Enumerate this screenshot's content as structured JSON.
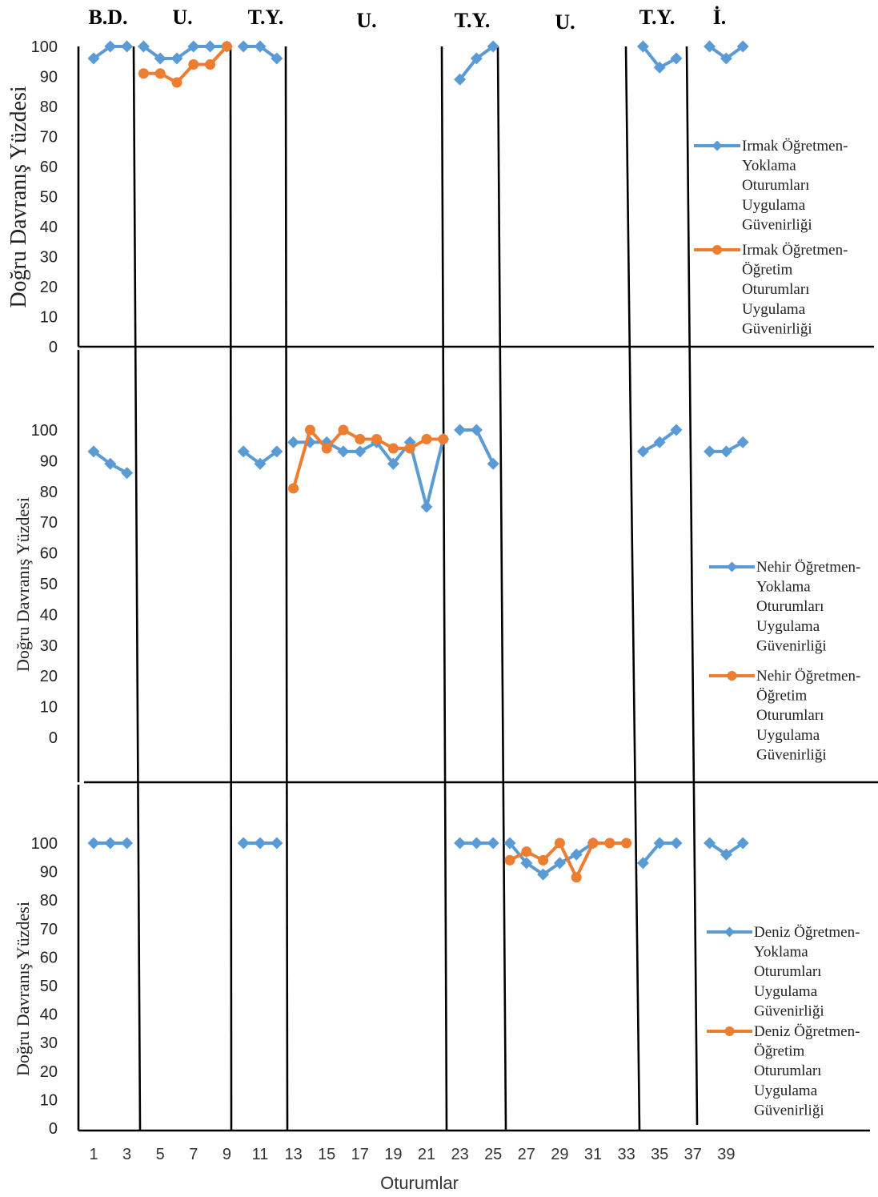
{
  "phase_labels": [
    "B.D.",
    "U.",
    "T.Y.",
    "U.",
    "T.Y.",
    "U.",
    "T.Y.",
    "İ."
  ],
  "x_axis_label": "Oturumlar",
  "x_tick_labels": [
    "1",
    "3",
    "5",
    "7",
    "9",
    "11",
    "13",
    "15",
    "17",
    "19",
    "21",
    "23",
    "25",
    "27",
    "29",
    "31",
    "33",
    "35",
    "37",
    "39"
  ],
  "y_axis_label": "Doğru Davranış Yüzdesi",
  "colors": {
    "probe": "#5b9bd5",
    "teaching": "#ed7d31"
  },
  "chart_data": [
    {
      "type": "line",
      "ylabel": "Doğru Davranış Yüzdesi",
      "xlabel": "",
      "yticks": [
        "0",
        "10",
        "20",
        "30",
        "40",
        "50",
        "60",
        "70",
        "80",
        "90",
        "100"
      ],
      "ylim": [
        0,
        100
      ],
      "xlim": [
        0,
        40
      ],
      "series": [
        {
          "name": "Irmak Öğretmen-Yoklama Oturumları Uygulama Güvenirliği",
          "legend_lines": [
            "Irmak Öğretmen-",
            "Yoklama",
            "Oturumları",
            "Uygulama",
            "Güvenirliği"
          ],
          "marker": "diamond",
          "segments": [
            [
              [
                1,
                96
              ],
              [
                2,
                100
              ],
              [
                3,
                100
              ]
            ],
            [
              [
                4,
                100
              ],
              [
                5,
                96
              ],
              [
                6,
                96
              ],
              [
                7,
                100
              ],
              [
                8,
                100
              ],
              [
                9,
                100
              ]
            ],
            [
              [
                10,
                100
              ],
              [
                11,
                100
              ],
              [
                12,
                96
              ]
            ],
            [
              [
                23,
                89
              ],
              [
                24,
                96
              ],
              [
                25,
                100
              ]
            ],
            [
              [
                34,
                100
              ],
              [
                35,
                93
              ],
              [
                36,
                96
              ]
            ],
            [
              [
                38,
                100
              ],
              [
                39,
                96
              ],
              [
                40,
                100
              ]
            ]
          ]
        },
        {
          "name": "Irmak Öğretmen-Öğretim Oturumları Uygulama Güvenirliği",
          "legend_lines": [
            "Irmak Öğretmen-",
            "Öğretim",
            "Oturumları",
            "Uygulama",
            "Güvenirliği"
          ],
          "marker": "circle",
          "segments": [
            [
              [
                4,
                91
              ],
              [
                5,
                91
              ],
              [
                6,
                88
              ],
              [
                7,
                94
              ],
              [
                8,
                94
              ],
              [
                9,
                100
              ]
            ]
          ]
        }
      ]
    },
    {
      "type": "line",
      "ylabel": "Doğru Davranış Yüzdesi",
      "xlabel": "",
      "yticks": [
        "0",
        "10",
        "20",
        "30",
        "40",
        "50",
        "60",
        "70",
        "80",
        "90",
        "100"
      ],
      "ylim": [
        0,
        100
      ],
      "xlim": [
        0,
        40
      ],
      "series": [
        {
          "name": "Nehir Öğretmen-Yoklama Oturumları Uygulama Güvenirliği",
          "legend_lines": [
            "Nehir Öğretmen-",
            "Yoklama",
            "Oturumları",
            "Uygulama",
            "Güvenirliği"
          ],
          "marker": "diamond",
          "segments": [
            [
              [
                1,
                93
              ],
              [
                2,
                89
              ],
              [
                3,
                86
              ]
            ],
            [
              [
                10,
                93
              ],
              [
                11,
                89
              ],
              [
                12,
                93
              ]
            ],
            [
              [
                13,
                96
              ],
              [
                14,
                96
              ],
              [
                15,
                96
              ],
              [
                16,
                93
              ],
              [
                17,
                93
              ],
              [
                18,
                96
              ],
              [
                19,
                89
              ],
              [
                20,
                96
              ],
              [
                21,
                75
              ],
              [
                22,
                97
              ]
            ],
            [
              [
                23,
                100
              ],
              [
                24,
                100
              ],
              [
                25,
                89
              ]
            ],
            [
              [
                34,
                93
              ],
              [
                35,
                96
              ],
              [
                36,
                100
              ]
            ],
            [
              [
                38,
                93
              ],
              [
                39,
                93
              ],
              [
                40,
                96
              ]
            ]
          ]
        },
        {
          "name": "Nehir Öğretmen-Öğretim Oturumları Uygulama Güvenirliği",
          "legend_lines": [
            "Nehir Öğretmen-",
            "Öğretim",
            "Oturumları",
            "Uygulama",
            "Güvenirliği"
          ],
          "marker": "circle",
          "segments": [
            [
              [
                13,
                81
              ],
              [
                14,
                100
              ],
              [
                15,
                94
              ],
              [
                16,
                100
              ],
              [
                17,
                97
              ],
              [
                18,
                97
              ],
              [
                19,
                94
              ],
              [
                20,
                94
              ],
              [
                21,
                97
              ],
              [
                22,
                97
              ]
            ]
          ]
        }
      ]
    },
    {
      "type": "line",
      "ylabel": "Doğru Davranış Yüzdesi",
      "xlabel": "Oturumlar",
      "yticks": [
        "0",
        "10",
        "20",
        "30",
        "40",
        "50",
        "60",
        "70",
        "80",
        "90",
        "100"
      ],
      "ylim": [
        0,
        100
      ],
      "xlim": [
        0,
        40
      ],
      "series": [
        {
          "name": "Deniz Öğretmen-Yoklama Oturumları Uygulama Güvenirliği",
          "legend_lines": [
            "Deniz Öğretmen-",
            "Yoklama",
            "Oturumları",
            "Uygulama",
            "Güvenirliği"
          ],
          "marker": "diamond",
          "segments": [
            [
              [
                1,
                100
              ],
              [
                2,
                100
              ],
              [
                3,
                100
              ]
            ],
            [
              [
                10,
                100
              ],
              [
                11,
                100
              ],
              [
                12,
                100
              ]
            ],
            [
              [
                23,
                100
              ],
              [
                24,
                100
              ],
              [
                25,
                100
              ]
            ],
            [
              [
                26,
                100
              ],
              [
                27,
                93
              ],
              [
                28,
                89
              ],
              [
                29,
                93
              ],
              [
                30,
                96
              ],
              [
                31,
                100
              ]
            ],
            [
              [
                34,
                93
              ],
              [
                35,
                100
              ],
              [
                36,
                100
              ]
            ],
            [
              [
                38,
                100
              ],
              [
                39,
                96
              ],
              [
                40,
                100
              ]
            ]
          ]
        },
        {
          "name": "Deniz Öğretmen-Öğretim Oturumları Uygulama Güvenirliği",
          "legend_lines": [
            "Deniz Öğretmen-",
            "Öğretim",
            "Oturumları",
            "Uygulama",
            "Güvenirliği"
          ],
          "marker": "circle",
          "segments": [
            [
              [
                26,
                94
              ],
              [
                27,
                97
              ],
              [
                28,
                94
              ],
              [
                29,
                100
              ],
              [
                30,
                88
              ],
              [
                31,
                100
              ],
              [
                32,
                100
              ],
              [
                33,
                100
              ]
            ]
          ]
        }
      ]
    }
  ]
}
